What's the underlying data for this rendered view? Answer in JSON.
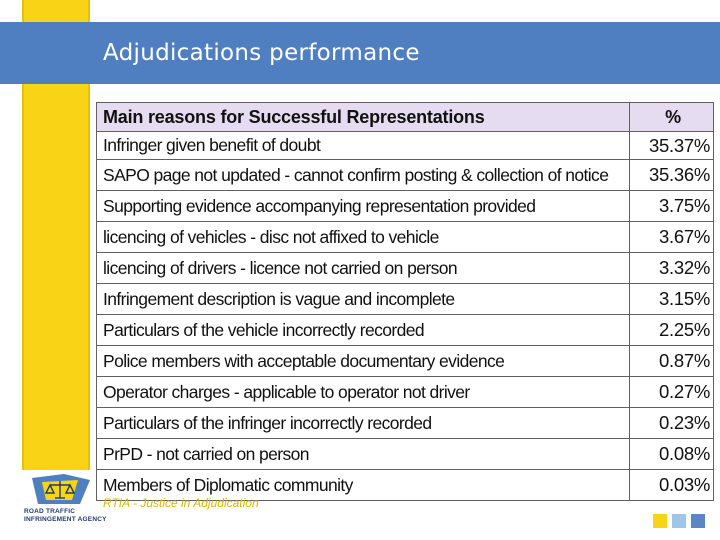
{
  "slide": {
    "title": "Adjudications performance",
    "footer": "RTIA - Justice in Adjudication"
  },
  "logo": {
    "line1": "ROAD TRAFFIC",
    "line2": "INFRINGEMENT AGENCY"
  },
  "table": {
    "header_reason": "Main reasons for Successful Representations",
    "header_pct": "%",
    "rows": [
      {
        "reason": "Infringer given benefit of doubt",
        "pct": "35.37%"
      },
      {
        "reason": "SAPO page not updated - cannot confirm posting & collection of notice",
        "pct": "35.36%"
      },
      {
        "reason": "Supporting evidence accompanying representation provided",
        "pct": "3.75%"
      },
      {
        "reason": "licencing of vehicles - disc not affixed to vehicle",
        "pct": "3.67%"
      },
      {
        "reason": "licencing of drivers - licence not carried on person",
        "pct": "3.32%"
      },
      {
        "reason": "Infringement description is vague and incomplete",
        "pct": "3.15%"
      },
      {
        "reason": "Particulars of the vehicle incorrectly recorded",
        "pct": "2.25%"
      },
      {
        "reason": "Police members with acceptable documentary evidence",
        "pct": "0.87%"
      },
      {
        "reason": "Operator charges - applicable to operator not driver",
        "pct": "0.27%"
      },
      {
        "reason": "Particulars of the infringer incorrectly recorded",
        "pct": "0.23%"
      },
      {
        "reason": "PrPD - not carried on person",
        "pct": "0.08%"
      },
      {
        "reason": "Members of Diplomatic community",
        "pct": "0.03%"
      }
    ]
  },
  "colors": {
    "title_band": "#4f7fc0",
    "yellow_bar": "#f9d316",
    "header_row": "#e6dcf1",
    "corner_squares": [
      "#f9d316",
      "#9dc6e8",
      "#5b86c4"
    ]
  }
}
